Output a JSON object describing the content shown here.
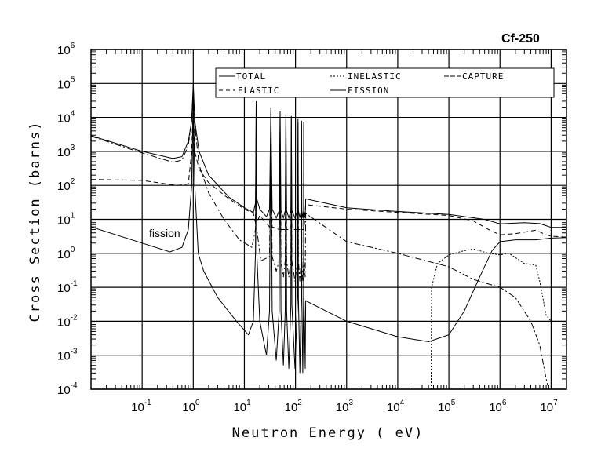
{
  "chart_data": {
    "type": "line",
    "title": "Cf-250",
    "xlabel": "Neutron Energy ( eV)",
    "ylabel": "Cross Section (barns)",
    "xscale": "log",
    "yscale": "log",
    "xlim": [
      0.01,
      20000000
    ],
    "ylim": [
      0.0001,
      1000000
    ],
    "grid": true,
    "legend_placement": "top-center",
    "annotation": "fission",
    "x_ticks": [
      {
        "base": "10",
        "exp": "-1",
        "value": 0.1
      },
      {
        "base": "10",
        "exp": "0",
        "value": 1
      },
      {
        "base": "10",
        "exp": "1",
        "value": 10
      },
      {
        "base": "10",
        "exp": "2",
        "value": 100
      },
      {
        "base": "10",
        "exp": "3",
        "value": 1000
      },
      {
        "base": "10",
        "exp": "4",
        "value": 10000
      },
      {
        "base": "10",
        "exp": "5",
        "value": 100000
      },
      {
        "base": "10",
        "exp": "6",
        "value": 1000000
      },
      {
        "base": "10",
        "exp": "7",
        "value": 10000000
      }
    ],
    "y_ticks": [
      {
        "base": "10",
        "exp": "6",
        "value": 1000000
      },
      {
        "base": "10",
        "exp": "5",
        "value": 100000
      },
      {
        "base": "10",
        "exp": "4",
        "value": 10000
      },
      {
        "base": "10",
        "exp": "3",
        "value": 1000
      },
      {
        "base": "10",
        "exp": "2",
        "value": 100
      },
      {
        "base": "10",
        "exp": "1",
        "value": 10
      },
      {
        "base": "10",
        "exp": "0",
        "value": 1
      },
      {
        "base": "10",
        "exp": "-1",
        "value": 0.1
      },
      {
        "base": "10",
        "exp": "-2",
        "value": 0.01
      },
      {
        "base": "10",
        "exp": "-3",
        "value": 0.001
      },
      {
        "base": "10",
        "exp": "-4",
        "value": 0.0001
      }
    ],
    "series": [
      {
        "name": "TOTAL",
        "style": "solid",
        "color": "#000000",
        "points": [
          [
            0.01,
            2900
          ],
          [
            0.1,
            1000
          ],
          [
            0.4,
            620
          ],
          [
            0.6,
            700
          ],
          [
            0.8,
            2000
          ],
          [
            0.93,
            8000
          ],
          [
            1.0,
            100000
          ],
          [
            1.07,
            8000
          ],
          [
            1.3,
            1000
          ],
          [
            2,
            200
          ],
          [
            5,
            45
          ],
          [
            10,
            22
          ],
          [
            15,
            16
          ],
          [
            16.5,
            30
          ],
          [
            17,
            30000
          ],
          [
            17.5,
            40
          ],
          [
            20,
            20
          ],
          [
            27,
            12
          ],
          [
            31,
            20
          ],
          [
            33,
            20000
          ],
          [
            35,
            20
          ],
          [
            42,
            11
          ],
          [
            48,
            18
          ],
          [
            50,
            15000
          ],
          [
            52,
            18
          ],
          [
            58,
            11
          ],
          [
            63,
            18
          ],
          [
            65,
            12000
          ],
          [
            67,
            18
          ],
          [
            74,
            11
          ],
          [
            81,
            18
          ],
          [
            83,
            11000
          ],
          [
            85,
            18
          ],
          [
            98,
            11
          ],
          [
            110,
            18
          ],
          [
            112,
            9000
          ],
          [
            114,
            18
          ],
          [
            122,
            11
          ],
          [
            129,
            18
          ],
          [
            131,
            8000
          ],
          [
            133,
            18
          ],
          [
            139,
            11
          ],
          [
            144,
            18
          ],
          [
            145,
            7500
          ],
          [
            147,
            18
          ],
          [
            155,
            11
          ],
          [
            158,
            40
          ],
          [
            1000,
            22
          ],
          [
            10000,
            17
          ],
          [
            100000,
            14
          ],
          [
            500000,
            10
          ],
          [
            1000000,
            7.4
          ],
          [
            3000000,
            8
          ],
          [
            6000000,
            7.5
          ],
          [
            10000000,
            5.8
          ],
          [
            20000000,
            5.8
          ]
        ]
      },
      {
        "name": "ELASTIC",
        "style": "dashed",
        "color": "#000000",
        "points": [
          [
            0.01,
            150
          ],
          [
            0.1,
            140
          ],
          [
            0.3,
            110
          ],
          [
            0.5,
            100
          ],
          [
            0.8,
            110
          ],
          [
            0.93,
            1000
          ],
          [
            1.0,
            20000
          ],
          [
            1.07,
            1000
          ],
          [
            1.3,
            300
          ],
          [
            2,
            120
          ],
          [
            5,
            40
          ],
          [
            10,
            20
          ],
          [
            15,
            15
          ],
          [
            16.5,
            8
          ],
          [
            17,
            1000
          ],
          [
            17.5,
            8
          ],
          [
            20,
            13
          ],
          [
            31,
            6
          ],
          [
            33,
            300
          ],
          [
            35,
            6
          ],
          [
            48,
            5
          ],
          [
            50,
            200
          ],
          [
            52,
            5
          ],
          [
            63,
            5
          ],
          [
            65,
            150
          ],
          [
            67,
            5
          ],
          [
            81,
            5
          ],
          [
            83,
            150
          ],
          [
            85,
            5
          ],
          [
            110,
            5
          ],
          [
            112,
            120
          ],
          [
            114,
            5
          ],
          [
            129,
            5
          ],
          [
            131,
            100
          ],
          [
            133,
            5
          ],
          [
            144,
            5
          ],
          [
            145,
            100
          ],
          [
            147,
            5
          ],
          [
            158,
            27
          ],
          [
            1000,
            20
          ],
          [
            10000,
            16
          ],
          [
            100000,
            13
          ],
          [
            300000,
            9
          ],
          [
            600000,
            5
          ],
          [
            1000000,
            3.5
          ],
          [
            2000000,
            3.8
          ],
          [
            5000000,
            4.8
          ],
          [
            8000000,
            3.5
          ],
          [
            10000000,
            3.2
          ],
          [
            20000000,
            3
          ]
        ]
      },
      {
        "name": "INELASTIC",
        "style": "dotted",
        "color": "#000000",
        "points": [
          [
            45000,
            0.0001
          ],
          [
            46000,
            0.1
          ],
          [
            60000,
            0.5
          ],
          [
            100000,
            0.9
          ],
          [
            200000,
            1.2
          ],
          [
            300000,
            1.35
          ],
          [
            600000,
            1.0
          ],
          [
            1000000,
            0.9
          ],
          [
            1500000,
            1.0
          ],
          [
            3000000,
            0.5
          ],
          [
            5000000,
            0.45
          ],
          [
            6000000,
            0.15
          ],
          [
            8000000,
            0.015
          ],
          [
            10000000,
            0.01
          ],
          [
            20000000,
            0.01
          ]
        ]
      },
      {
        "name": "CAPTURE",
        "style": "dash-dot",
        "color": "#000000",
        "points": [
          [
            0.01,
            2800
          ],
          [
            0.1,
            900
          ],
          [
            0.4,
            480
          ],
          [
            0.6,
            550
          ],
          [
            0.8,
            1500
          ],
          [
            0.93,
            8000
          ],
          [
            1.0,
            80000
          ],
          [
            1.07,
            6000
          ],
          [
            1.3,
            400
          ],
          [
            2,
            60
          ],
          [
            4,
            10
          ],
          [
            8,
            2.5
          ],
          [
            14,
            1.5
          ],
          [
            16.5,
            5
          ],
          [
            17,
            5000
          ],
          [
            17.5,
            5
          ],
          [
            21,
            0.6
          ],
          [
            31,
            0.8
          ],
          [
            33,
            3000
          ],
          [
            35,
            0.8
          ],
          [
            42,
            0.3
          ],
          [
            48,
            0.6
          ],
          [
            50,
            2500
          ],
          [
            52,
            0.6
          ],
          [
            58,
            0.2
          ],
          [
            63,
            0.6
          ],
          [
            65,
            2000
          ],
          [
            67,
            0.6
          ],
          [
            74,
            0.2
          ],
          [
            81,
            0.6
          ],
          [
            83,
            2000
          ],
          [
            85,
            0.6
          ],
          [
            98,
            0.15
          ],
          [
            110,
            0.6
          ],
          [
            112,
            1500
          ],
          [
            114,
            0.6
          ],
          [
            122,
            0.15
          ],
          [
            129,
            0.6
          ],
          [
            131,
            1200
          ],
          [
            133,
            0.6
          ],
          [
            139,
            0.15
          ],
          [
            144,
            0.6
          ],
          [
            145,
            1200
          ],
          [
            147,
            0.6
          ],
          [
            155,
            0.2
          ],
          [
            158,
            15
          ],
          [
            1000,
            2.2
          ],
          [
            10000,
            1
          ],
          [
            100000,
            0.4
          ],
          [
            300000,
            0.17
          ],
          [
            1000000,
            0.1
          ],
          [
            2000000,
            0.05
          ],
          [
            4000000,
            0.01
          ],
          [
            6000000,
            0.002
          ],
          [
            8000000,
            0.0002
          ],
          [
            9000000,
            0.0001
          ]
        ]
      },
      {
        "name": "FISSION",
        "style": "solid",
        "color": "#000000",
        "points": [
          [
            0.01,
            6
          ],
          [
            0.1,
            2
          ],
          [
            0.35,
            1.1
          ],
          [
            0.6,
            1.5
          ],
          [
            0.8,
            5
          ],
          [
            0.93,
            100
          ],
          [
            1.0,
            50000
          ],
          [
            1.07,
            100
          ],
          [
            1.25,
            1
          ],
          [
            1.6,
            0.3
          ],
          [
            3,
            0.05
          ],
          [
            7,
            0.01
          ],
          [
            12,
            0.004
          ],
          [
            15,
            0.01
          ],
          [
            16.5,
            1
          ],
          [
            17,
            20000
          ],
          [
            17.5,
            1
          ],
          [
            20,
            0.01
          ],
          [
            27,
            0.001
          ],
          [
            31,
            0.02
          ],
          [
            33,
            14000
          ],
          [
            35,
            0.02
          ],
          [
            42,
            0.0007
          ],
          [
            48,
            0.02
          ],
          [
            50,
            11000
          ],
          [
            52,
            0.02
          ],
          [
            58,
            0.0005
          ],
          [
            63,
            0.02
          ],
          [
            65,
            9000
          ],
          [
            67,
            0.02
          ],
          [
            74,
            0.0004
          ],
          [
            81,
            0.03
          ],
          [
            83,
            9000
          ],
          [
            85,
            0.03
          ],
          [
            98,
            0.0004
          ],
          [
            110,
            0.05
          ],
          [
            112,
            7000
          ],
          [
            114,
            0.05
          ],
          [
            122,
            0.0003
          ],
          [
            129,
            0.05
          ],
          [
            131,
            6500
          ],
          [
            133,
            0.05
          ],
          [
            139,
            0.0003
          ],
          [
            144,
            0.05
          ],
          [
            145,
            6000
          ],
          [
            147,
            0.05
          ],
          [
            155,
            0.0004
          ],
          [
            158,
            0.04
          ],
          [
            1000,
            0.01
          ],
          [
            10000,
            0.0035
          ],
          [
            40000,
            0.0025
          ],
          [
            100000,
            0.004
          ],
          [
            200000,
            0.02
          ],
          [
            400000,
            0.2
          ],
          [
            700000,
            1.2
          ],
          [
            1000000,
            2.2
          ],
          [
            2000000,
            2.5
          ],
          [
            5000000,
            2.5
          ],
          [
            10000000,
            2.8
          ],
          [
            20000000,
            2.9
          ]
        ]
      }
    ]
  }
}
